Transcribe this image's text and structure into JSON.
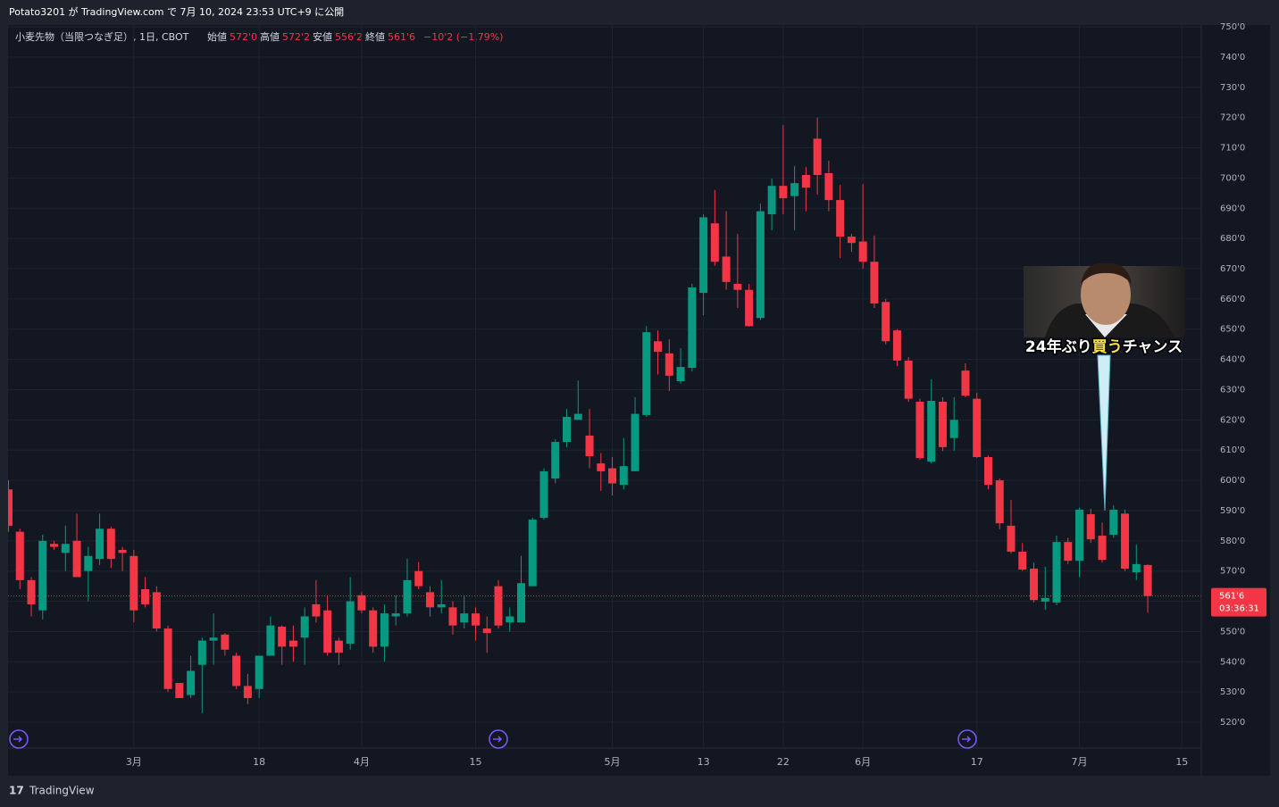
{
  "header": {
    "publish_info": "Potato3201 が TradingView.com で 7月 10, 2024 23:53 UTC+9 に公開",
    "footer_brand": "TradingView"
  },
  "chart_data": {
    "type": "candlestick",
    "title": "小麦先物（当限つなぎ足）, 1日, CBOT",
    "ohlc_legend": [
      {
        "label": "始値",
        "value": "572'0"
      },
      {
        "label": "高値",
        "value": "572'2"
      },
      {
        "label": "安値",
        "value": "556'2"
      },
      {
        "label": "終値",
        "value": "561'6"
      }
    ],
    "change": "−10'2 (−1.79%)",
    "up_color": "#089981",
    "down_color": "#f23645",
    "categories": [
      null,
      null,
      null,
      null,
      null,
      null,
      null,
      null,
      null,
      null,
      null,
      null,
      null,
      null,
      null,
      null,
      null,
      null,
      null,
      null,
      null,
      null,
      null,
      null,
      null,
      null,
      null,
      null,
      null,
      null,
      null,
      null,
      null,
      null,
      null,
      null,
      null,
      null,
      null,
      null,
      null,
      null,
      null,
      null,
      null,
      null,
      null,
      null,
      null,
      null,
      null,
      null,
      null,
      null,
      null,
      null,
      null,
      null,
      null,
      null,
      null,
      null,
      null,
      null,
      null,
      null,
      null,
      null,
      null,
      null,
      null,
      null,
      null,
      null,
      null,
      null,
      null,
      null,
      null,
      null,
      null,
      null,
      null,
      null,
      null,
      null,
      null,
      null,
      null,
      null,
      null,
      null,
      null,
      null,
      null,
      null,
      null,
      null,
      null,
      null,
      null
    ],
    "open": [
      597,
      583,
      567,
      557,
      579,
      576,
      580,
      570,
      574,
      584,
      577,
      575,
      564,
      563,
      551,
      533,
      529,
      539,
      547,
      549,
      542,
      532,
      531,
      542,
      551.6,
      547,
      548,
      559,
      557,
      547,
      546,
      562,
      557,
      545,
      555,
      556,
      570,
      563,
      558,
      558,
      553,
      556,
      551,
      565,
      553,
      553,
      565,
      587.6,
      600.6,
      612.7,
      620,
      614.8,
      605.6,
      604,
      598.5,
      603,
      621.6,
      646,
      642,
      632.8,
      637.2,
      662,
      685,
      674,
      665,
      663,
      653.7,
      688,
      697.4,
      694,
      701,
      713,
      701.6,
      692.7,
      680.6,
      679,
      672.3,
      659,
      649.6,
      639.6,
      626,
      606.2,
      626,
      614,
      636.3,
      627,
      607.7,
      600,
      585,
      576.4,
      570.8,
      559.9,
      559.6,
      579.6,
      573.4,
      588.8,
      581.7,
      582,
      589,
      569.6,
      572
    ],
    "high": [
      600,
      584,
      568,
      582,
      580,
      585,
      589,
      578,
      589,
      584.7,
      578,
      577,
      568,
      565,
      552,
      533,
      542,
      548,
      556,
      549.5,
      543,
      536,
      542,
      555,
      552,
      552,
      558,
      567,
      562,
      548,
      568,
      563,
      558,
      559,
      562,
      574,
      573,
      565,
      567,
      560,
      562,
      558,
      555,
      567,
      558,
      575,
      587.6,
      604,
      613.6,
      623.6,
      633,
      623.6,
      609,
      607.7,
      614,
      627.5,
      651,
      649.6,
      646.7,
      643.7,
      665,
      688,
      696,
      689,
      681.5,
      665,
      691.5,
      699.8,
      717.5,
      704,
      703.6,
      720,
      705.7,
      697.7,
      681.5,
      698,
      681,
      660,
      650,
      640.8,
      627,
      633.4,
      627.5,
      627.5,
      638.7,
      629,
      608.3,
      600.6,
      593.5,
      579.3,
      572.8,
      571.4,
      581.7,
      581,
      591,
      590.6,
      586,
      591.7,
      590.3,
      578.7,
      572.25
    ],
    "low": [
      583,
      564,
      555,
      554,
      577,
      570,
      568,
      560,
      572,
      571,
      570,
      553,
      558,
      550,
      530,
      528,
      528,
      523,
      539,
      542,
      531,
      526,
      528,
      542,
      539,
      540,
      539,
      553,
      542,
      539,
      544,
      556,
      543,
      540,
      552,
      555,
      564,
      555,
      556,
      549,
      551,
      547,
      543,
      551,
      550,
      553,
      565,
      587,
      599,
      611,
      620,
      604,
      596.5,
      595,
      597,
      603,
      621,
      635,
      629.5,
      632,
      636,
      654.6,
      671,
      663,
      657,
      650.8,
      653,
      682.7,
      688,
      682.7,
      689,
      694.5,
      689,
      673.5,
      675.6,
      670,
      657,
      645,
      637.8,
      626,
      606.8,
      605.6,
      609.7,
      609.7,
      627.5,
      607.4,
      597,
      583.8,
      575.8,
      570,
      559.6,
      557.2,
      558.7,
      572.3,
      568,
      579.3,
      572.8,
      581,
      570,
      567,
      556.25
    ],
    "close": [
      585,
      567,
      559,
      580,
      578,
      579,
      568,
      575,
      584,
      574,
      576,
      557,
      559,
      551,
      531,
      528,
      537,
      547,
      548,
      544,
      532,
      528,
      542,
      552,
      545,
      545,
      555,
      555,
      543,
      543,
      560,
      557,
      545,
      556,
      556,
      567,
      565,
      558,
      559,
      552,
      556,
      552,
      549.5,
      552,
      555,
      566,
      587,
      603,
      612.7,
      621,
      622,
      608,
      603,
      599,
      604.7,
      622,
      649,
      642.5,
      634.6,
      637.5,
      663.8,
      687,
      672.3,
      665.6,
      663,
      651,
      689,
      697.4,
      693.3,
      698.3,
      696.8,
      701,
      692.7,
      680.6,
      678.5,
      672.3,
      658.5,
      646,
      639.6,
      627,
      607.4,
      626.3,
      611,
      620,
      628,
      607.7,
      598.5,
      585.8,
      576.4,
      570.5,
      560.4,
      561.1,
      579.6,
      573.4,
      590.3,
      580.5,
      573.7,
      590.3,
      570.8,
      572.3,
      561.75
    ],
    "xlim": [
      -0.04,
      104.7
    ],
    "xticks": [
      {
        "value": 11,
        "label": "3月"
      },
      {
        "value": 22,
        "label": "18"
      },
      {
        "value": 31,
        "label": "4月"
      },
      {
        "value": 41,
        "label": "15"
      },
      {
        "value": 53,
        "label": "5月"
      },
      {
        "value": 61,
        "label": "13"
      },
      {
        "value": 68,
        "label": "22"
      },
      {
        "value": 75,
        "label": "6月"
      },
      {
        "value": 85,
        "label": "17"
      },
      {
        "value": 94,
        "label": "7月"
      },
      {
        "value": 103,
        "label": "15"
      }
    ],
    "ylim": [
      502.3,
      750.6
    ],
    "yticks": [
      {
        "value": 520,
        "label": "520'0"
      },
      {
        "value": 530,
        "label": "530'0"
      },
      {
        "value": 540,
        "label": "540'0"
      },
      {
        "value": 550,
        "label": "550'0"
      },
      {
        "value": 560,
        "label": "560'0"
      },
      {
        "value": 570,
        "label": "570'0"
      },
      {
        "value": 580,
        "label": "580'0"
      },
      {
        "value": 590,
        "label": "590'0"
      },
      {
        "value": 600,
        "label": "600'0"
      },
      {
        "value": 610,
        "label": "610'0"
      },
      {
        "value": 620,
        "label": "620'0"
      },
      {
        "value": 630,
        "label": "630'0"
      },
      {
        "value": 640,
        "label": "640'0"
      },
      {
        "value": 650,
        "label": "650'0"
      },
      {
        "value": 660,
        "label": "660'0"
      },
      {
        "value": 670,
        "label": "670'0"
      },
      {
        "value": 680,
        "label": "680'0"
      },
      {
        "value": 690,
        "label": "690'0"
      },
      {
        "value": 700,
        "label": "700'0"
      },
      {
        "value": 710,
        "label": "710'0"
      },
      {
        "value": 720,
        "label": "720'0"
      },
      {
        "value": 730,
        "label": "730'0"
      },
      {
        "value": 740,
        "label": "740'0"
      },
      {
        "value": 750,
        "label": "750'0"
      }
    ],
    "grid": true,
    "last_price": {
      "value": 561.75,
      "label": "561'6"
    },
    "countdown": "03:36:31",
    "annotation": {
      "text_parts": [
        "24年ぶり",
        "買う",
        "チャンス"
      ]
    }
  }
}
